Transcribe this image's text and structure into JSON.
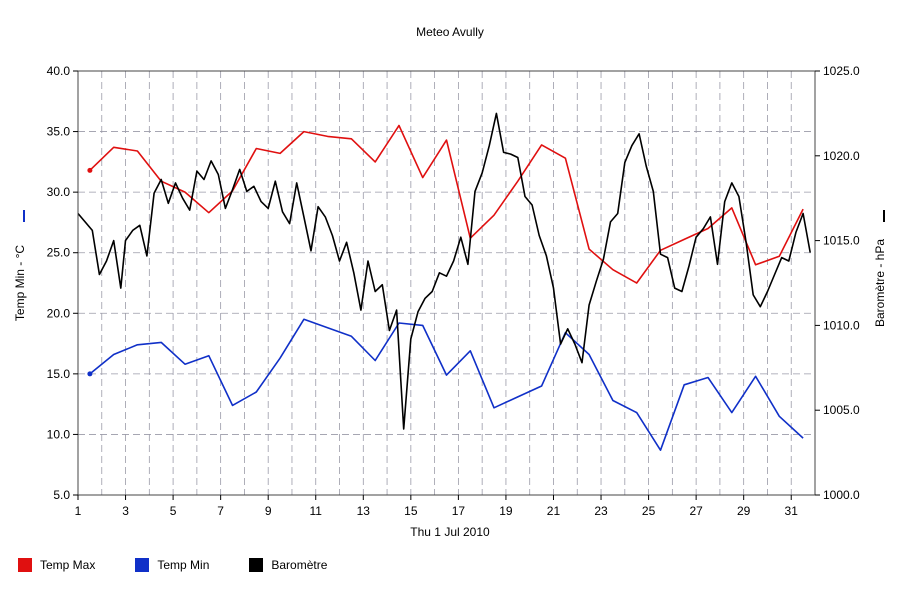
{
  "chart_data": {
    "type": "line",
    "title": "Meteo  Avully",
    "xlabel": "Thu 1 Jul 2010",
    "ylabel_left": "Temp Min - °C",
    "ylabel_right": "Baromètre - hPa",
    "left_ylim": [
      5.0,
      40.0
    ],
    "right_ylim": [
      1000.0,
      1025.0
    ],
    "xlim": [
      1,
      32
    ],
    "x_ticks": [
      1,
      3,
      5,
      7,
      9,
      11,
      13,
      15,
      17,
      19,
      21,
      23,
      25,
      27,
      29,
      31
    ],
    "left_ticks": [
      "5.0",
      "10.0",
      "15.0",
      "20.0",
      "25.0",
      "30.0",
      "35.0",
      "40.0"
    ],
    "right_ticks": [
      "1000.0",
      "1005.0",
      "1010.0",
      "1015.0",
      "1020.0",
      "1025.0"
    ],
    "grid": true,
    "series": [
      {
        "name": "Temp Max",
        "color": "#e01010",
        "axis": "left",
        "x": [
          1.5,
          2.5,
          3.5,
          4.5,
          5.5,
          6.5,
          7.5,
          8.5,
          9.5,
          10.5,
          11.5,
          12.5,
          13.5,
          14.5,
          15.5,
          16.5,
          17.5,
          18.5,
          19.5,
          20.5,
          21.5,
          22.5,
          23.5,
          24.5,
          25.5,
          26.5,
          27.5,
          28.5,
          29.5,
          30.5,
          31.5
        ],
        "values": [
          31.8,
          33.7,
          33.4,
          30.9,
          30.0,
          28.3,
          30.1,
          33.6,
          33.2,
          35.0,
          34.6,
          34.4,
          32.5,
          35.5,
          31.2,
          34.3,
          26.2,
          28.1,
          30.9,
          33.9,
          32.8,
          25.3,
          23.6,
          22.5,
          25.2,
          26.1,
          27.0,
          28.7,
          24.0,
          24.7,
          28.6
        ]
      },
      {
        "name": "Temp Min",
        "color": "#1030c8",
        "axis": "left",
        "x": [
          1.5,
          2.5,
          3.5,
          4.5,
          5.5,
          6.5,
          7.5,
          8.5,
          9.5,
          10.5,
          11.5,
          12.5,
          13.5,
          14.5,
          15.5,
          16.5,
          17.5,
          18.5,
          19.5,
          20.5,
          21.5,
          22.5,
          23.5,
          24.5,
          25.5,
          26.5,
          27.5,
          28.5,
          29.5,
          30.5,
          31.5
        ],
        "values": [
          15.0,
          16.6,
          17.4,
          17.6,
          15.8,
          16.5,
          12.4,
          13.5,
          16.3,
          19.5,
          18.8,
          18.1,
          16.1,
          19.2,
          19.0,
          14.9,
          16.9,
          12.2,
          13.1,
          14.0,
          18.4,
          16.6,
          12.8,
          11.8,
          8.7,
          14.1,
          14.7,
          11.8,
          14.8,
          11.5,
          9.7
        ]
      },
      {
        "name": "Baromètre",
        "color": "#000000",
        "axis": "right",
        "x": [
          1.0,
          1.3,
          1.6,
          1.9,
          2.2,
          2.5,
          2.8,
          3.0,
          3.3,
          3.6,
          3.9,
          4.2,
          4.5,
          4.8,
          5.1,
          5.4,
          5.7,
          6.0,
          6.3,
          6.6,
          6.9,
          7.2,
          7.5,
          7.8,
          8.1,
          8.4,
          8.7,
          9.0,
          9.3,
          9.6,
          9.9,
          10.2,
          10.5,
          10.8,
          11.1,
          11.4,
          11.7,
          12.0,
          12.3,
          12.6,
          12.9,
          13.2,
          13.5,
          13.8,
          14.1,
          14.4,
          14.7,
          15.0,
          15.3,
          15.6,
          15.9,
          16.2,
          16.5,
          16.8,
          17.1,
          17.4,
          17.7,
          18.0,
          18.3,
          18.6,
          18.9,
          19.2,
          19.5,
          19.8,
          20.1,
          20.4,
          20.7,
          21.0,
          21.3,
          21.6,
          21.9,
          22.2,
          22.5,
          22.8,
          23.1,
          23.4,
          23.7,
          24.0,
          24.3,
          24.6,
          24.9,
          25.2,
          25.5,
          25.8,
          26.1,
          26.4,
          26.7,
          27.0,
          27.3,
          27.6,
          27.9,
          28.2,
          28.5,
          28.8,
          29.1,
          29.4,
          29.7,
          30.0,
          30.3,
          30.6,
          30.9,
          31.2,
          31.5,
          31.8
        ],
        "values": [
          1016.6,
          1016.1,
          1015.6,
          1013.0,
          1013.8,
          1015.0,
          1012.2,
          1015.0,
          1015.6,
          1015.9,
          1014.1,
          1017.8,
          1018.6,
          1017.2,
          1018.4,
          1017.5,
          1016.8,
          1019.1,
          1018.6,
          1019.7,
          1018.9,
          1016.9,
          1018.0,
          1019.2,
          1017.9,
          1018.2,
          1017.3,
          1016.9,
          1018.5,
          1016.7,
          1016.0,
          1018.4,
          1016.4,
          1014.4,
          1017.0,
          1016.4,
          1015.3,
          1013.8,
          1014.9,
          1013.1,
          1010.9,
          1013.8,
          1012.0,
          1012.4,
          1009.7,
          1010.9,
          1003.9,
          1009.2,
          1010.8,
          1011.6,
          1012.0,
          1013.1,
          1012.9,
          1013.8,
          1015.2,
          1013.6,
          1017.9,
          1019.0,
          1020.6,
          1022.5,
          1020.2,
          1020.1,
          1019.9,
          1017.6,
          1017.1,
          1015.3,
          1014.1,
          1012.2,
          1008.9,
          1009.8,
          1008.9,
          1007.8,
          1011.2,
          1012.6,
          1013.9,
          1016.1,
          1016.6,
          1019.6,
          1020.6,
          1021.3,
          1019.4,
          1017.9,
          1014.2,
          1014.0,
          1012.2,
          1012.0,
          1013.5,
          1015.2,
          1015.7,
          1016.4,
          1013.6,
          1017.3,
          1018.4,
          1017.6,
          1014.9,
          1011.8,
          1011.1,
          1012.0,
          1013.0,
          1014.0,
          1013.8,
          1015.5,
          1016.6,
          1014.3
        ]
      }
    ]
  },
  "legend": [
    {
      "label": "Temp Max",
      "color": "#e01010"
    },
    {
      "label": "Temp Min",
      "color": "#1030c8"
    },
    {
      "label": "Baromètre",
      "color": "#000000"
    }
  ]
}
